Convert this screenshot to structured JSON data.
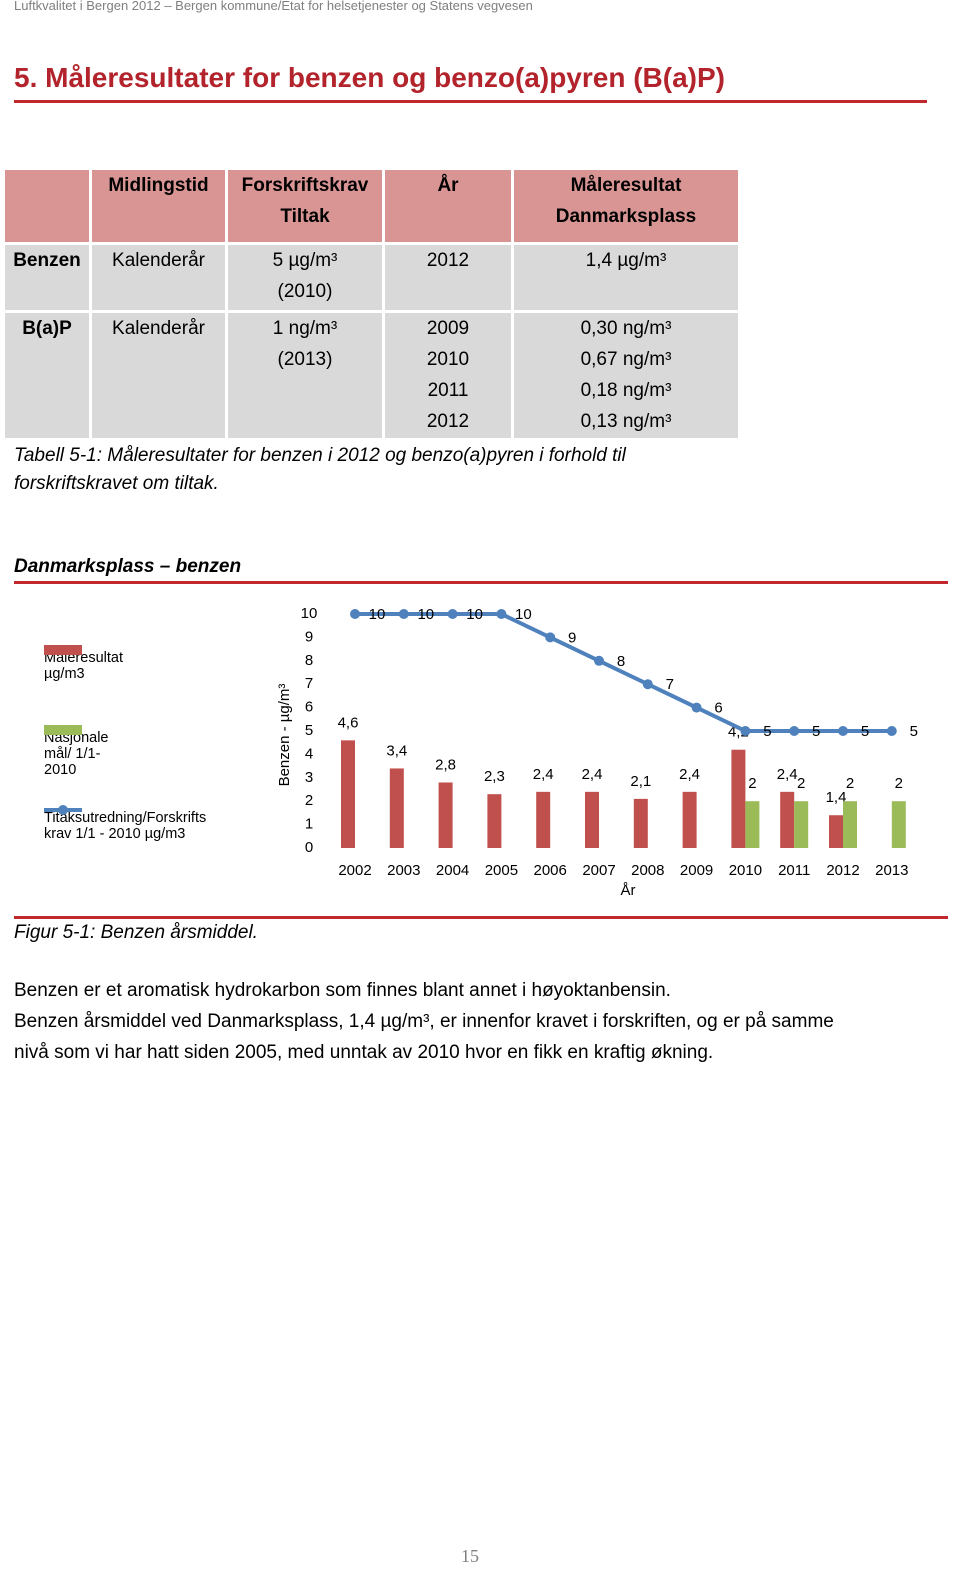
{
  "header": "Luftkvalitet i Bergen 2012 – Bergen kommune/Etat for helsetjenester og Statens vegvesen",
  "heading": "5. Måleresultater for benzen og benzo(a)pyren (B(a)P)",
  "table": {
    "header": [
      "Midlingstid",
      [
        "Forskriftskrav",
        "Tiltak"
      ],
      "År",
      [
        "Måleresultat",
        "Danmarksplass"
      ]
    ],
    "rows": [
      [
        "Benzen",
        "Kalenderår",
        [
          "5 µg/m³",
          "(2010)"
        ],
        [
          "2012"
        ],
        [
          "1,4 µg/m³"
        ]
      ],
      [
        "B(a)P",
        "Kalenderår",
        [
          "1 ng/m³",
          "(2013)"
        ],
        [
          "2009",
          "2010",
          "2011",
          "2012"
        ],
        [
          "0,30 ng/m³",
          "0,67 ng/m³",
          "0,18 ng/m³",
          "0,13 ng/m³"
        ]
      ]
    ]
  },
  "table_caption": [
    "Tabell 5-1: Måleresultater for benzen i 2012 og benzo(a)pyren i forhold til",
    "forskriftskravet om tiltak."
  ],
  "chart_data": {
    "type": "bar",
    "title": "Danmarksplass – benzen",
    "y_label": "Benzen - µg/m³",
    "x_label": "År",
    "categories": [
      "2002",
      "2003",
      "2004",
      "2005",
      "2006",
      "2007",
      "2008",
      "2009",
      "2010",
      "2011",
      "2012",
      "2013"
    ],
    "series": [
      {
        "name": "Måleresultat µg/m3",
        "type": "bar",
        "color": "#c0504d",
        "values": [
          4.6,
          3.4,
          2.8,
          2.3,
          2.4,
          2.4,
          2.1,
          2.4,
          4.2,
          2.4,
          1.4,
          null
        ],
        "value_labels": [
          "4,6",
          "3,4",
          "2,8",
          "2,3",
          "2,4",
          "2,4",
          "2,1",
          "2,4",
          "4,2",
          "2,4",
          "1,4",
          null
        ]
      },
      {
        "name": "Nasjonale mål/ 1/1-2010",
        "type": "bar",
        "color": "#9bbb59",
        "values": [
          null,
          null,
          null,
          null,
          null,
          null,
          null,
          null,
          2,
          2,
          2,
          2
        ]
      },
      {
        "name": "Titaksutredning/Forskrifts krav 1/1 - 2010 µg/m3",
        "type": "line",
        "color": "#4f81bd",
        "values": [
          10,
          10,
          10,
          10,
          9,
          8,
          7,
          6,
          5,
          5,
          5,
          5
        ]
      }
    ],
    "ylim": [
      0,
      10
    ],
    "yticks": [
      0,
      1,
      2,
      3,
      4,
      5,
      6,
      7,
      8,
      9,
      10
    ],
    "grid": false,
    "legend": "left"
  },
  "figure_caption": "Figur 5-1: Benzen årsmiddel.",
  "paragraphs": [
    "Benzen er et aromatisk hydrokarbon som finnes blant annet i høyoktanbensin.",
    "Benzen årsmiddel ved Danmarksplass, 1,4 µg/m³, er innenfor kravet i forskriften, og er på samme",
    "nivå som vi har hatt siden 2005, med unntak av 2010 hvor en fikk en kraftig økning."
  ],
  "page_number": "15"
}
